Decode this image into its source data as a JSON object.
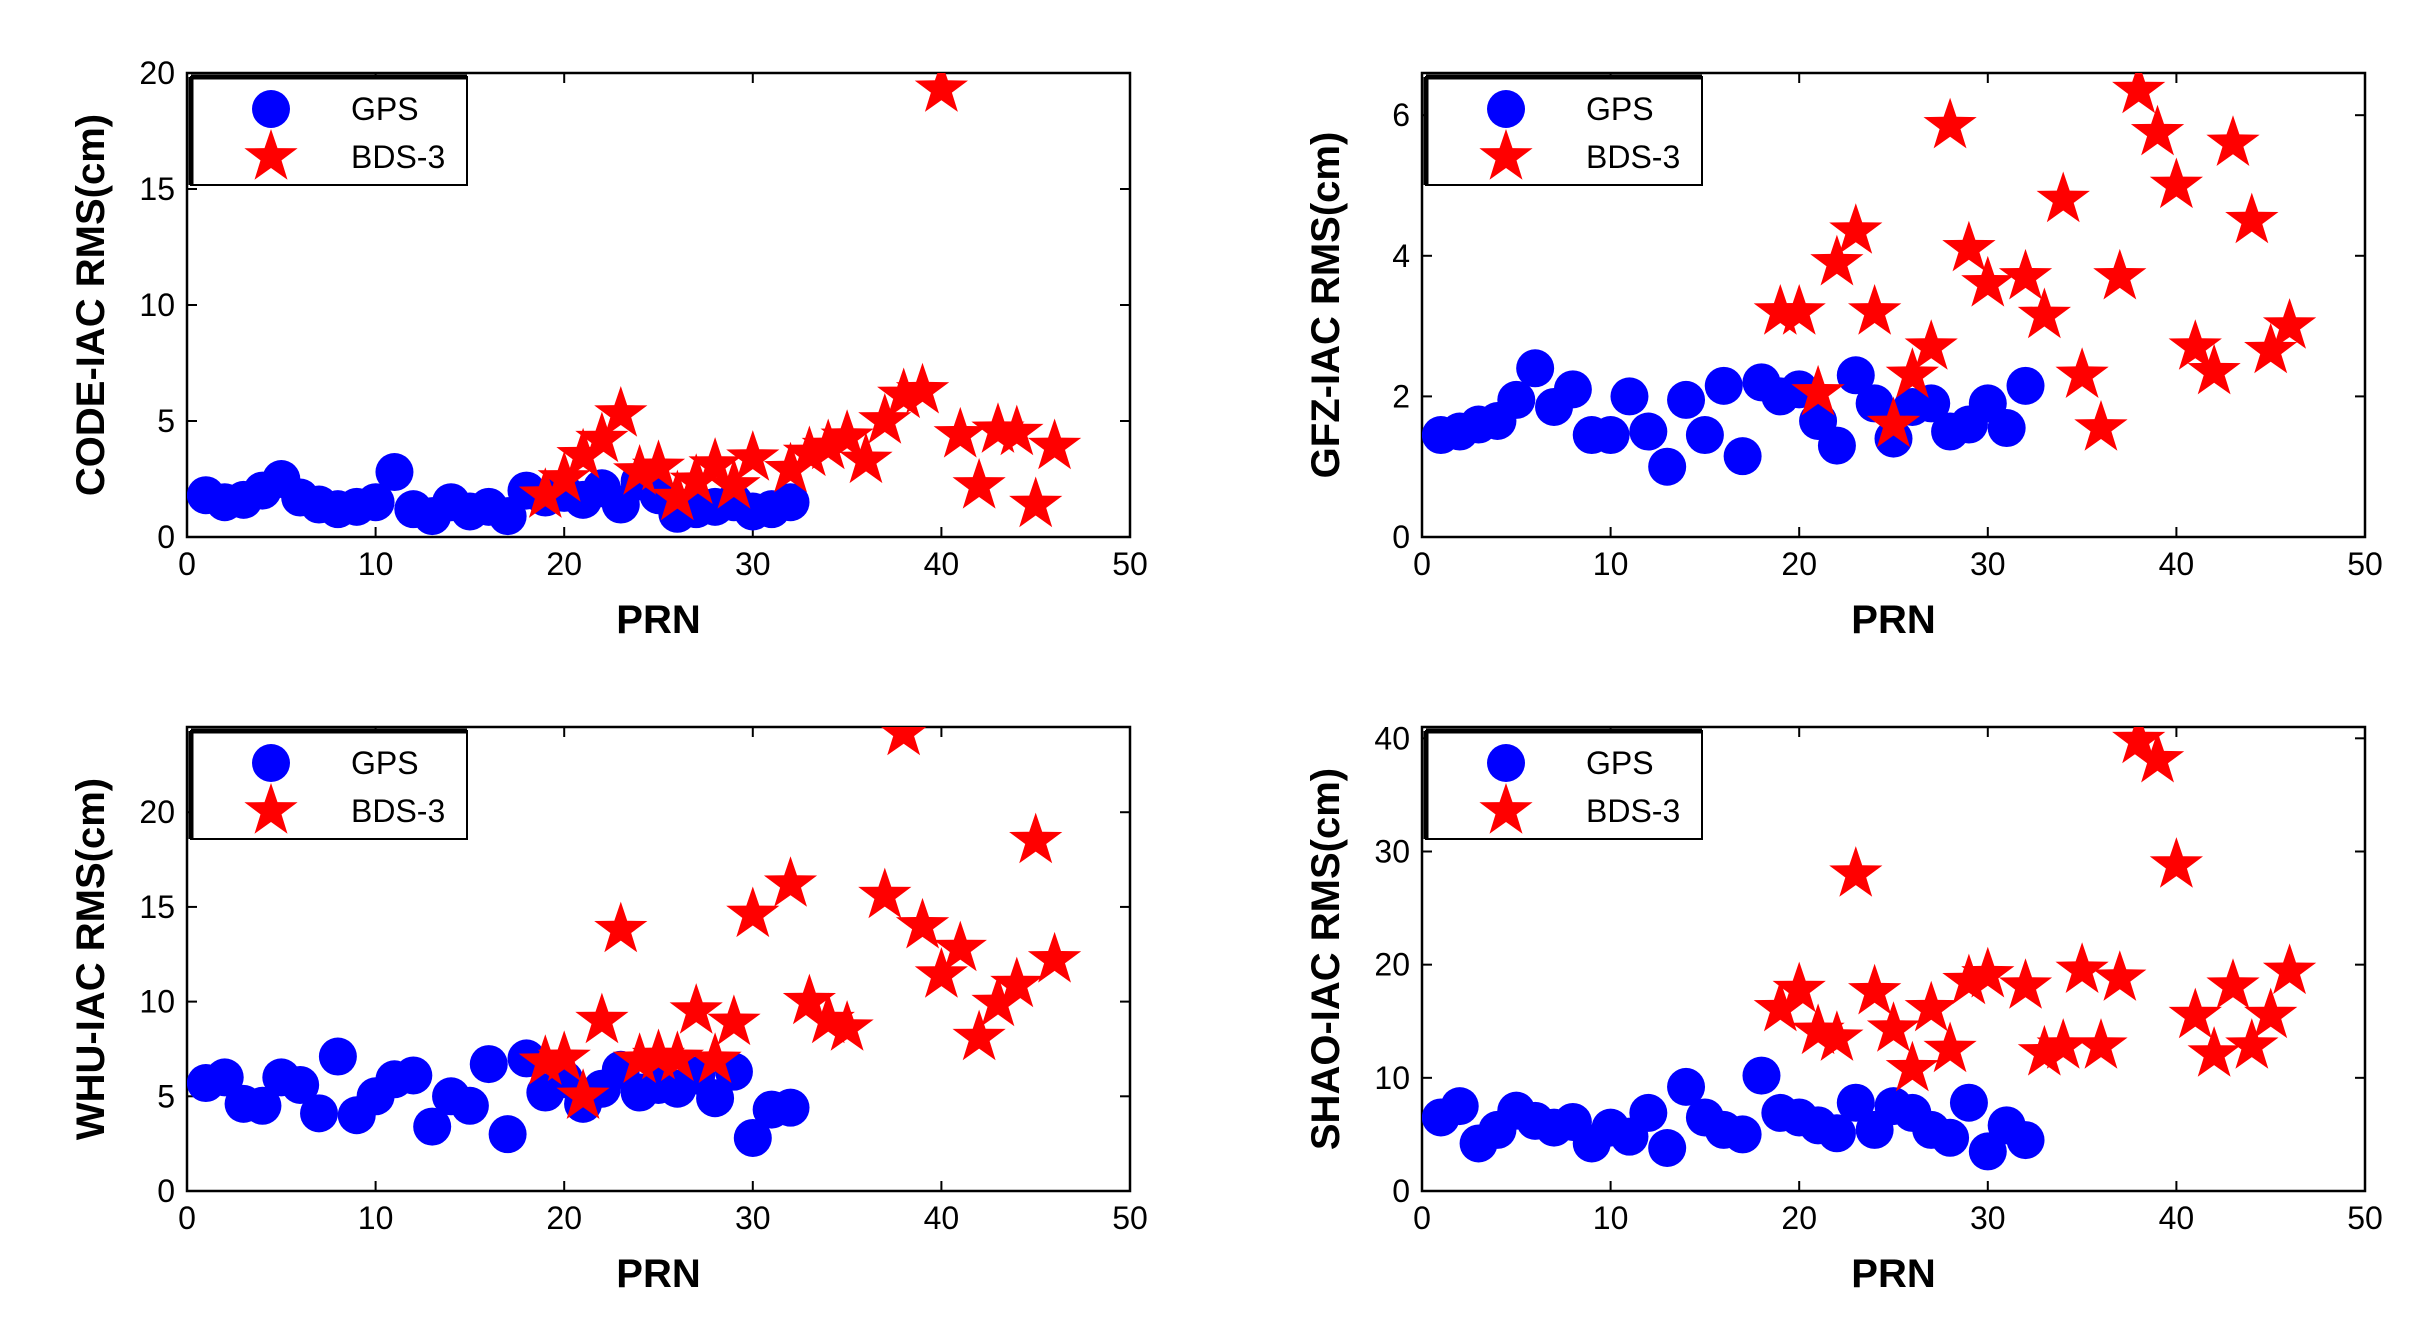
{
  "colors": {
    "gps": "#0000ff",
    "bds": "#ff0000",
    "axis": "#000000",
    "background": "#ffffff"
  },
  "chart_data": [
    {
      "type": "scatter",
      "ylabel": "CODE-IAC RMS(cm)",
      "xlabel": "PRN",
      "xlim": [
        0,
        50
      ],
      "ylim": [
        0,
        20
      ],
      "xticks": [
        0,
        10,
        20,
        30,
        40,
        50
      ],
      "yticks": [
        0,
        5,
        10,
        15,
        20
      ],
      "legend_position": "top-left",
      "series": [
        {
          "name": "GPS",
          "marker": "circle",
          "x": [
            1,
            2,
            3,
            4,
            5,
            6,
            7,
            8,
            9,
            10,
            11,
            12,
            13,
            14,
            15,
            16,
            17,
            18,
            19,
            20,
            21,
            22,
            23,
            24,
            25,
            26,
            27,
            28,
            29,
            30,
            31,
            32
          ],
          "y": [
            1.8,
            1.5,
            1.6,
            2.0,
            2.5,
            1.7,
            1.4,
            1.2,
            1.3,
            1.5,
            2.8,
            1.2,
            0.9,
            1.5,
            1.1,
            1.3,
            0.9,
            2.0,
            1.7,
            1.9,
            1.6,
            2.1,
            1.4,
            2.4,
            1.8,
            1.0,
            1.2,
            1.3,
            1.5,
            1.1,
            1.2,
            1.5
          ]
        },
        {
          "name": "BDS-3",
          "marker": "star",
          "x": [
            19,
            20,
            21,
            22,
            23,
            24,
            25,
            26,
            27,
            28,
            29,
            30,
            32,
            33,
            34,
            35,
            36,
            37,
            38,
            39,
            40,
            41,
            42,
            43,
            44,
            45,
            46
          ],
          "y": [
            1.8,
            2.5,
            3.5,
            4.2,
            5.3,
            2.8,
            3.0,
            1.7,
            2.4,
            3.1,
            2.2,
            3.4,
            2.9,
            3.6,
            3.9,
            4.3,
            3.3,
            5.0,
            6.1,
            6.3,
            19.3,
            4.4,
            2.2,
            4.6,
            4.5,
            1.4,
            3.9
          ]
        }
      ]
    },
    {
      "type": "scatter",
      "ylabel": "GFZ-IAC RMS(cm)",
      "xlabel": "PRN",
      "xlim": [
        0,
        50
      ],
      "ylim": [
        0,
        6.6
      ],
      "xticks": [
        0,
        10,
        20,
        30,
        40,
        50
      ],
      "yticks": [
        0,
        2,
        4,
        6
      ],
      "legend_position": "top-left",
      "series": [
        {
          "name": "GPS",
          "marker": "circle",
          "x": [
            1,
            2,
            3,
            4,
            5,
            6,
            7,
            8,
            9,
            10,
            11,
            12,
            13,
            14,
            15,
            16,
            17,
            18,
            19,
            20,
            21,
            22,
            23,
            24,
            25,
            26,
            27,
            28,
            29,
            30,
            31,
            32
          ],
          "y": [
            1.45,
            1.5,
            1.6,
            1.65,
            1.95,
            2.4,
            1.85,
            2.1,
            1.45,
            1.45,
            2.0,
            1.5,
            1.0,
            1.95,
            1.45,
            2.15,
            1.15,
            2.2,
            2.0,
            2.1,
            1.65,
            1.3,
            2.3,
            1.9,
            1.4,
            1.85,
            1.9,
            1.5,
            1.6,
            1.9,
            1.55,
            2.15
          ]
        },
        {
          "name": "BDS-3",
          "marker": "star",
          "x": [
            19,
            20,
            21,
            22,
            23,
            24,
            25,
            26,
            27,
            28,
            29,
            30,
            32,
            33,
            34,
            35,
            36,
            37,
            38,
            39,
            40,
            41,
            42,
            43,
            44,
            45,
            46
          ],
          "y": [
            3.2,
            3.2,
            2.05,
            3.9,
            4.35,
            3.2,
            1.6,
            2.3,
            2.7,
            5.85,
            4.1,
            3.6,
            3.7,
            3.15,
            4.8,
            2.3,
            1.55,
            3.7,
            6.35,
            5.75,
            5.0,
            2.7,
            2.35,
            5.6,
            4.5,
            2.65,
            3.0
          ]
        }
      ]
    },
    {
      "type": "scatter",
      "ylabel": "WHU-IAC RMS(cm)",
      "xlabel": "PRN",
      "xlim": [
        0,
        50
      ],
      "ylim": [
        0,
        24.5
      ],
      "xticks": [
        0,
        10,
        20,
        30,
        40,
        50
      ],
      "yticks": [
        0,
        5,
        10,
        15,
        20
      ],
      "legend_position": "top-left",
      "series": [
        {
          "name": "GPS",
          "marker": "circle",
          "x": [
            1,
            2,
            3,
            4,
            5,
            6,
            7,
            8,
            9,
            10,
            11,
            12,
            13,
            14,
            15,
            16,
            17,
            18,
            19,
            20,
            21,
            22,
            23,
            24,
            25,
            26,
            27,
            28,
            29,
            30,
            31,
            32
          ],
          "y": [
            5.7,
            6.0,
            4.6,
            4.5,
            6.0,
            5.6,
            4.1,
            7.1,
            4.0,
            5.0,
            5.9,
            6.1,
            3.4,
            5.0,
            4.5,
            6.7,
            3.0,
            7.0,
            5.2,
            5.9,
            4.6,
            5.4,
            6.4,
            5.2,
            5.6,
            5.4,
            6.1,
            4.9,
            6.3,
            2.8,
            4.3,
            4.4
          ]
        },
        {
          "name": "BDS-3",
          "marker": "star",
          "x": [
            19,
            20,
            21,
            22,
            23,
            24,
            25,
            26,
            27,
            28,
            29,
            30,
            32,
            33,
            34,
            35,
            37,
            38,
            39,
            40,
            41,
            42,
            43,
            44,
            45,
            46
          ],
          "y": [
            6.8,
            7.0,
            5.0,
            9.0,
            13.8,
            6.9,
            7.1,
            7.0,
            9.5,
            6.9,
            8.9,
            14.6,
            16.2,
            10.0,
            9.0,
            8.6,
            15.6,
            24.2,
            14.0,
            11.4,
            12.8,
            8.1,
            9.9,
            10.9,
            18.5,
            12.2
          ]
        }
      ]
    },
    {
      "type": "scatter",
      "ylabel": "SHAO-IAC RMS(cm)",
      "xlabel": "PRN",
      "xlim": [
        0,
        50
      ],
      "ylim": [
        0,
        41
      ],
      "xticks": [
        0,
        10,
        20,
        30,
        40,
        50
      ],
      "yticks": [
        0,
        10,
        20,
        30,
        40
      ],
      "legend_position": "top-left",
      "series": [
        {
          "name": "GPS",
          "marker": "circle",
          "x": [
            1,
            2,
            3,
            4,
            5,
            6,
            7,
            8,
            9,
            10,
            11,
            12,
            13,
            14,
            15,
            16,
            17,
            18,
            19,
            20,
            21,
            22,
            23,
            24,
            25,
            26,
            27,
            28,
            29,
            30,
            31,
            32
          ],
          "y": [
            6.5,
            7.5,
            4.2,
            5.4,
            7.1,
            6.2,
            5.6,
            6.1,
            4.2,
            5.6,
            4.8,
            6.9,
            3.8,
            9.2,
            6.5,
            5.4,
            5.0,
            10.2,
            6.9,
            6.5,
            5.8,
            5.1,
            7.8,
            5.4,
            7.5,
            6.9,
            5.4,
            4.7,
            7.8,
            3.5,
            5.8,
            4.5
          ]
        },
        {
          "name": "BDS-3",
          "marker": "star",
          "x": [
            19,
            20,
            21,
            22,
            23,
            24,
            25,
            26,
            27,
            28,
            29,
            30,
            32,
            33,
            34,
            35,
            36,
            37,
            38,
            39,
            40,
            41,
            42,
            43,
            44,
            45,
            46
          ],
          "y": [
            16.1,
            17.8,
            14.1,
            13.5,
            28.0,
            17.6,
            14.3,
            10.8,
            16.1,
            12.5,
            18.5,
            19.1,
            18.1,
            12.2,
            12.8,
            19.5,
            12.8,
            18.8,
            39.8,
            38.1,
            28.8,
            15.5,
            12.1,
            18.1,
            12.8,
            15.5,
            19.4
          ]
        }
      ]
    }
  ]
}
